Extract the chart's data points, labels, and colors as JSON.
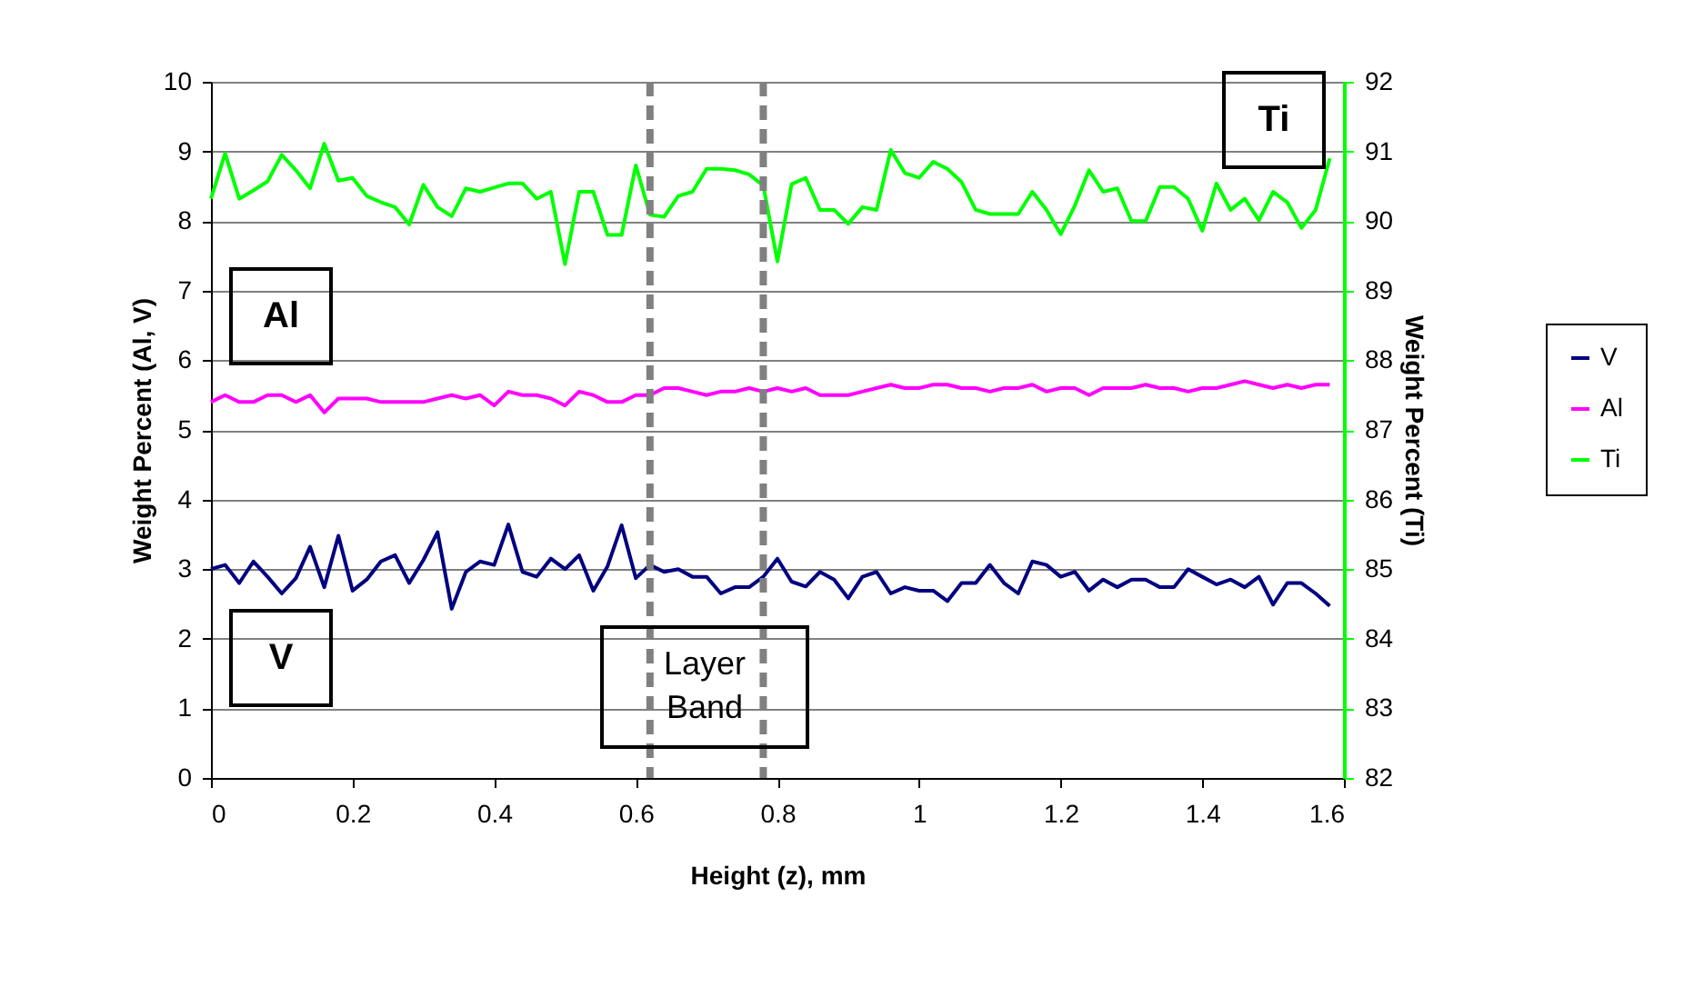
{
  "chart_data": {
    "type": "line",
    "xlabel": "Height (z), mm",
    "ylabel": "Weight Percent (Al, V)",
    "y2label": "Weight Percent (Ti)",
    "x": [
      0,
      0.02,
      0.04,
      0.06,
      0.08,
      0.1,
      0.12,
      0.14,
      0.16,
      0.18,
      0.2,
      0.22,
      0.24,
      0.26,
      0.28,
      0.3,
      0.32,
      0.34,
      0.36,
      0.38,
      0.4,
      0.42,
      0.44,
      0.46,
      0.48,
      0.5,
      0.52,
      0.54,
      0.56,
      0.58,
      0.6,
      0.62,
      0.64,
      0.66,
      0.68,
      0.7,
      0.72,
      0.74,
      0.76,
      0.78,
      0.8,
      0.82,
      0.84,
      0.86,
      0.88,
      0.9,
      0.92,
      0.94,
      0.96,
      0.98,
      1,
      1.02,
      1.04,
      1.06,
      1.08,
      1.1,
      1.12,
      1.14,
      1.16,
      1.18,
      1.2,
      1.22,
      1.24,
      1.26,
      1.28,
      1.3,
      1.32,
      1.34,
      1.36,
      1.38,
      1.4,
      1.42,
      1.44,
      1.46,
      1.48,
      1.5,
      1.52,
      1.54,
      1.56,
      1.58
    ],
    "series": [
      {
        "name": "V",
        "color": "#000080",
        "values": [
          3.0,
          3.06,
          2.8,
          3.11,
          2.89,
          2.65,
          2.87,
          3.32,
          2.74,
          3.48,
          2.69,
          2.85,
          3.11,
          3.2,
          2.8,
          3.13,
          3.53,
          2.43,
          2.96,
          3.11,
          3.06,
          3.64,
          2.96,
          2.89,
          3.15,
          3.0,
          3.2,
          2.69,
          3.04,
          3.63,
          2.87,
          3.06,
          2.96,
          3.0,
          2.89,
          2.89,
          2.65,
          2.74,
          2.74,
          2.89,
          3.15,
          2.82,
          2.75,
          2.96,
          2.85,
          2.58,
          2.89,
          2.96,
          2.65,
          2.74,
          2.69,
          2.69,
          2.54,
          2.8,
          2.8,
          3.06,
          2.8,
          2.65,
          3.11,
          3.06,
          2.89,
          2.96,
          2.69,
          2.85,
          2.74,
          2.85,
          2.85,
          2.74,
          2.74,
          3.0,
          2.89,
          2.78,
          2.85,
          2.74,
          2.89,
          2.49,
          2.8,
          2.8,
          2.65,
          2.47
        ]
      },
      {
        "name": "Al",
        "color": "#ff00ff",
        "values": [
          5.4,
          5.5,
          5.4,
          5.4,
          5.5,
          5.5,
          5.4,
          5.5,
          5.25,
          5.45,
          5.45,
          5.45,
          5.4,
          5.4,
          5.4,
          5.4,
          5.45,
          5.5,
          5.45,
          5.5,
          5.35,
          5.55,
          5.5,
          5.5,
          5.45,
          5.35,
          5.55,
          5.5,
          5.4,
          5.4,
          5.5,
          5.5,
          5.6,
          5.6,
          5.55,
          5.5,
          5.55,
          5.55,
          5.6,
          5.55,
          5.6,
          5.55,
          5.6,
          5.5,
          5.5,
          5.5,
          5.55,
          5.6,
          5.65,
          5.6,
          5.6,
          5.65,
          5.65,
          5.6,
          5.6,
          5.55,
          5.6,
          5.6,
          5.65,
          5.55,
          5.6,
          5.6,
          5.5,
          5.6,
          5.6,
          5.6,
          5.65,
          5.6,
          5.6,
          5.55,
          5.6,
          5.6,
          5.65,
          5.7,
          5.65,
          5.6,
          5.65,
          5.6,
          5.65,
          5.65
        ]
      },
      {
        "name": "Ti",
        "color": "#00ff00",
        "axis": "y2",
        "values": [
          90.32,
          90.97,
          90.32,
          90.44,
          90.57,
          90.95,
          90.73,
          90.47,
          91.11,
          90.58,
          90.62,
          90.36,
          90.27,
          90.2,
          89.95,
          90.52,
          90.2,
          90.07,
          90.47,
          90.42,
          90.48,
          90.54,
          90.54,
          90.32,
          90.42,
          89.38,
          90.42,
          90.42,
          89.8,
          89.8,
          90.8,
          90.09,
          90.06,
          90.36,
          90.42,
          90.75,
          90.75,
          90.73,
          90.67,
          90.51,
          89.42,
          90.53,
          90.62,
          90.16,
          90.16,
          89.96,
          90.2,
          90.16,
          91.02,
          90.69,
          90.62,
          90.85,
          90.75,
          90.56,
          90.16,
          90.1,
          90.1,
          90.1,
          90.42,
          90.16,
          89.81,
          90.22,
          90.73,
          90.42,
          90.47,
          90.0,
          90.0,
          90.49,
          90.49,
          90.32,
          89.86,
          90.54,
          90.16,
          90.32,
          90.01,
          90.42,
          90.27,
          89.9,
          90.16,
          90.9
        ]
      }
    ],
    "xlim": [
      0,
      1.6
    ],
    "xticks": [
      0,
      0.2,
      0.4,
      0.6,
      0.8,
      1,
      1.2,
      1.4,
      1.6
    ],
    "ylim": [
      0,
      10
    ],
    "yticks": [
      0,
      1,
      2,
      3,
      4,
      5,
      6,
      7,
      8,
      9,
      10
    ],
    "y2lim": [
      82,
      92
    ],
    "y2ticks": [
      82,
      83,
      84,
      85,
      86,
      87,
      88,
      89,
      90,
      91,
      92
    ],
    "ref_lines": [
      {
        "axis": "x",
        "value": 0.62,
        "color": "#808080",
        "line_style": "dashed"
      },
      {
        "axis": "x",
        "value": 0.78,
        "color": "#808080",
        "line_style": "dashed"
      }
    ],
    "annotations": [
      "Ti",
      "Al",
      "V",
      "Layer Band"
    ],
    "grid": "y",
    "legend": "right"
  }
}
